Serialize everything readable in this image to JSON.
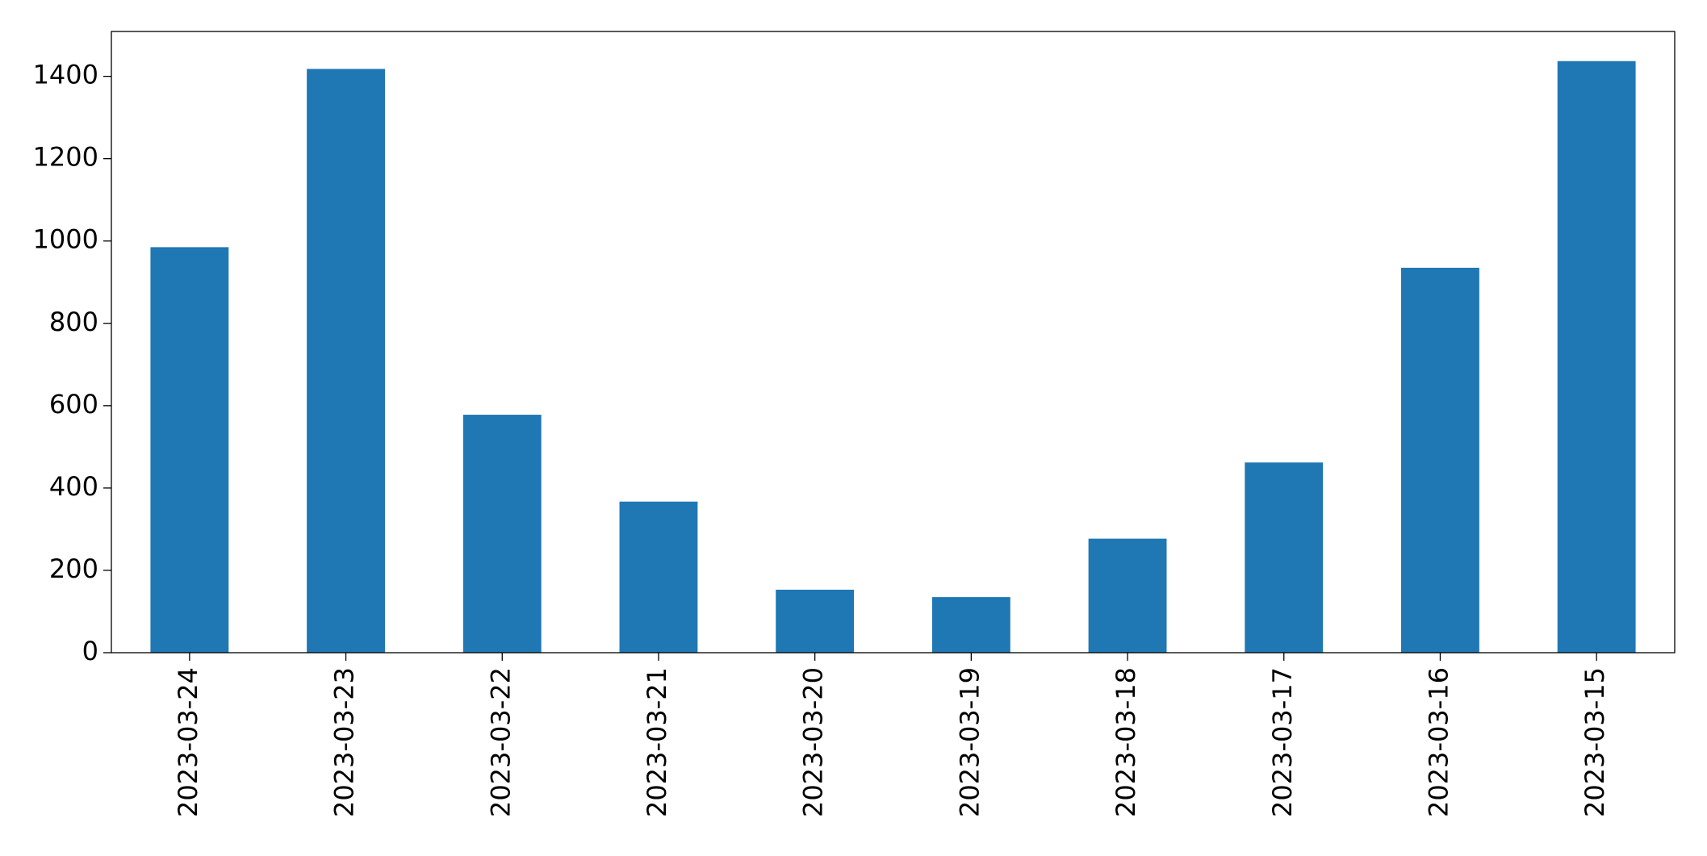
{
  "chart_data": {
    "type": "bar",
    "categories": [
      "2023-03-24",
      "2023-03-23",
      "2023-03-22",
      "2023-03-21",
      "2023-03-20",
      "2023-03-19",
      "2023-03-18",
      "2023-03-17",
      "2023-03-16",
      "2023-03-15"
    ],
    "values": [
      985,
      1418,
      578,
      367,
      153,
      135,
      277,
      462,
      935,
      1437
    ],
    "color": "#1f77b4",
    "ylim": [
      0,
      1509
    ],
    "yticks": [
      0,
      200,
      400,
      600,
      800,
      1000,
      1200,
      1400
    ],
    "grid": false
  }
}
